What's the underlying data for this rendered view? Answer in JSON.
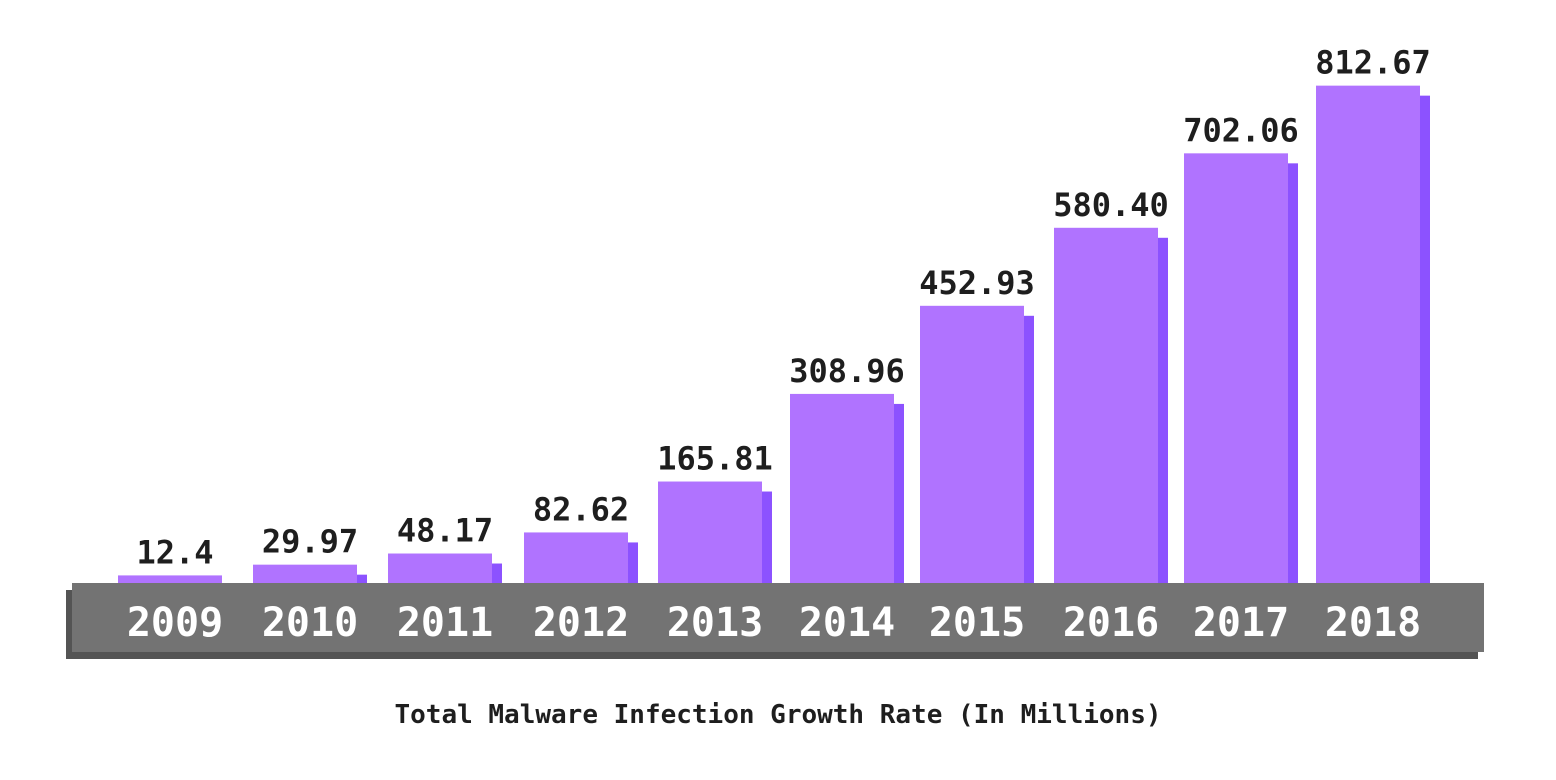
{
  "caption": "Total Malware Infection Growth Rate (In Millions)",
  "colors": {
    "bar_face": "#b073ff",
    "bar_side": "#8c52ff",
    "axis_band": "#737373",
    "axis_band_shadow": "#545454",
    "text_dark": "#1e1e1e",
    "text_light": "#ffffff"
  },
  "chart_data": {
    "type": "bar",
    "categories": [
      "2009",
      "2010",
      "2011",
      "2012",
      "2013",
      "2014",
      "2015",
      "2016",
      "2017",
      "2018"
    ],
    "values": [
      12.4,
      29.97,
      48.17,
      82.62,
      165.81,
      308.96,
      452.93,
      580.4,
      702.06,
      812.67
    ],
    "value_labels": [
      "12.4",
      "29.97",
      "48.17",
      "82.62",
      "165.81",
      "308.96",
      "452.93",
      "580.40",
      "702.06",
      "812.67"
    ],
    "title": "",
    "xlabel": "Total Malware Infection Growth Rate (In Millions)",
    "ylabel": "",
    "grid": false,
    "legend": "none"
  }
}
